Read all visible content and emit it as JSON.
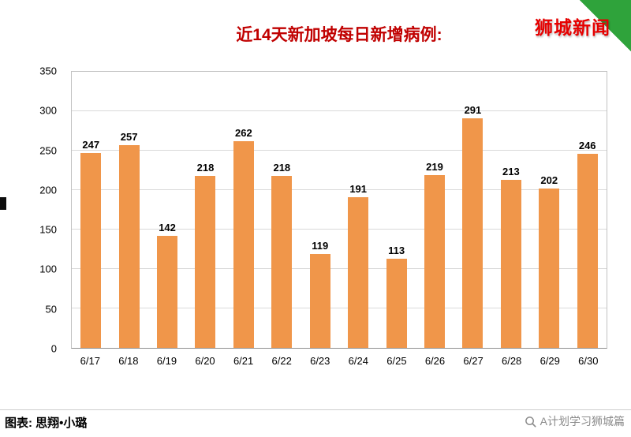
{
  "header": {
    "brand": "狮城新闻"
  },
  "chart_data": {
    "type": "bar",
    "title": "近14天新加坡每日新增病例:",
    "categories": [
      "6/17",
      "6/18",
      "6/19",
      "6/20",
      "6/21",
      "6/22",
      "6/23",
      "6/24",
      "6/25",
      "6/26",
      "6/27",
      "6/28",
      "6/29",
      "6/30"
    ],
    "values": [
      247,
      257,
      142,
      218,
      262,
      218,
      119,
      191,
      113,
      219,
      291,
      213,
      202,
      246
    ],
    "xlabel": "",
    "ylabel": "",
    "ylim": [
      0,
      350
    ],
    "ytick_step": 50,
    "bar_color": "#F0964A",
    "grid": "horizontal",
    "legend": "none"
  },
  "footer": {
    "credit": "图表: 思翔•小璐",
    "account": "A计划学习狮城篇"
  },
  "colors": {
    "title_red": "#C00000",
    "brand_red": "#E60000",
    "corner_green": "#2FA33B",
    "footer_gray": "#8C8C8C"
  }
}
